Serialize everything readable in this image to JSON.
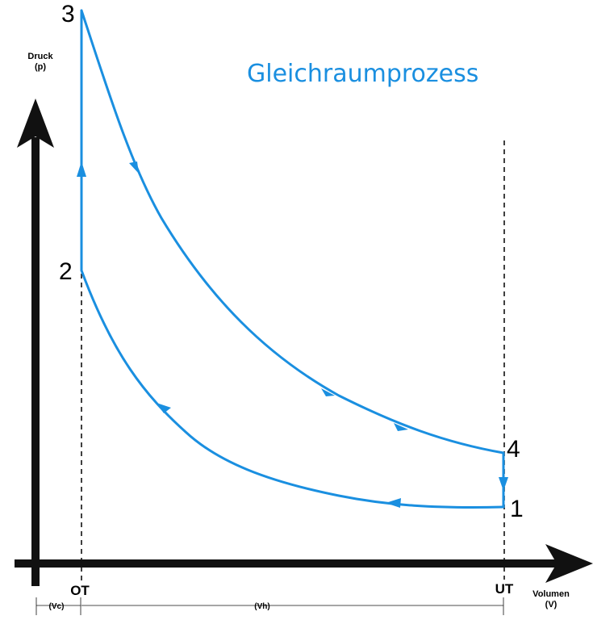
{
  "title": "Gleichraumprozess",
  "axes": {
    "y_label_line1": "Druck",
    "y_label_line2": "(p)",
    "x_label_line1": "Volumen",
    "x_label_line2": "(V)"
  },
  "markers": {
    "ot": "OT",
    "ut": "UT"
  },
  "dimensions": {
    "vc": "(Vc)",
    "vh": "(Vh)"
  },
  "points": {
    "p1": "1",
    "p2": "2",
    "p3": "3",
    "p4": "4"
  },
  "colors": {
    "curve": "#1a8fe0",
    "title": "#1a8fe0",
    "axis": "#111111"
  }
}
